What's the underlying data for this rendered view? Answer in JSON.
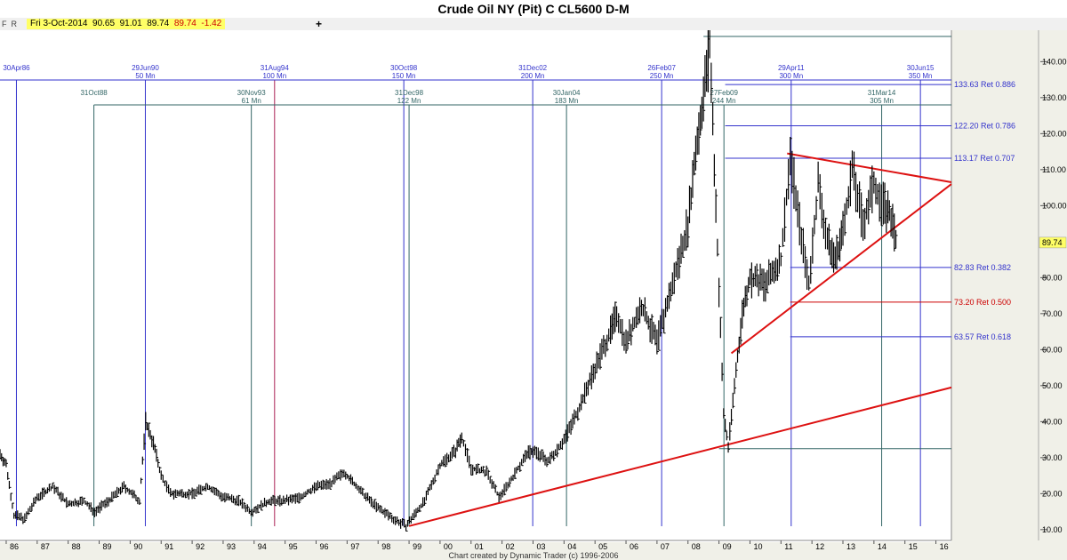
{
  "title": "Crude Oil NY (Pit) C CL5600 D-M",
  "toolbar": {
    "f_label": "F",
    "r_label": "R",
    "plus": "+"
  },
  "quote": {
    "date": "Fri 3-Oct-2014",
    "open": "90.65",
    "high": "91.01",
    "low": "89.74",
    "close": "89.74",
    "change": "-1.42"
  },
  "footer": "Chart created by Dynamic Trader  (c) 1996-2006",
  "colors": {
    "background": "#f0f0e8",
    "price": "#000000",
    "trendline": "#dd1111",
    "cycle_blue": "#3333cc",
    "cycle_green": "#336666",
    "fib_blue": "#3333cc",
    "fib_red": "#cc0000",
    "last_price_bg": "#ffff66"
  },
  "chart_data": {
    "type": "line",
    "title": "Crude Oil NY (Pit) C CL5600 D-M",
    "x_ticks": [
      "86",
      "87",
      "88",
      "89",
      "90",
      "91",
      "92",
      "93",
      "94",
      "95",
      "96",
      "97",
      "98",
      "99",
      "00",
      "01",
      "02",
      "03",
      "04",
      "05",
      "06",
      "07",
      "08",
      "09",
      "10",
      "11",
      "12",
      "13",
      "14",
      "15",
      "16"
    ],
    "y_ticks": [
      "10.00",
      "20.00",
      "30.00",
      "40.00",
      "50.00",
      "60.00",
      "70.00",
      "80.00",
      "90.00",
      "100.00",
      "110.00",
      "120.00",
      "130.00",
      "140.00"
    ],
    "ylim": [
      7,
      147
    ],
    "xlim": [
      1985.8,
      2016.5
    ],
    "last_price": "89.74",
    "series": [
      {
        "x": [
          1985.8,
          1986.0,
          1986.25,
          1986.6,
          1987.0,
          1987.5,
          1988.0,
          1988.5,
          1988.85,
          1989.3,
          1989.8,
          1990.3,
          1990.5,
          1990.75,
          1991.0,
          1991.3,
          1992.0,
          1992.5,
          1993.0,
          1993.5,
          1993.9,
          1994.5,
          1995.0,
          1995.5,
          1996.0,
          1996.5,
          1996.9,
          1997.5,
          1998.0,
          1998.5,
          1998.9,
          1999.5,
          2000.0,
          2000.5,
          2000.7,
          2001.0,
          2001.5,
          2001.9,
          2002.3,
          2002.8,
          2003.0,
          2003.5,
          2004.0,
          2004.5,
          2005.0,
          2005.5,
          2005.7,
          2006.0,
          2006.5,
          2007.0,
          2007.5,
          2008.0,
          2008.25,
          2008.5,
          2008.7,
          2008.9,
          2009.15,
          2009.3,
          2009.5,
          2009.75,
          2010.0,
          2010.5,
          2011.0,
          2011.3,
          2011.6,
          2011.9,
          2012.2,
          2012.5,
          2012.75,
          2013.0,
          2013.3,
          2013.65,
          2014.0,
          2014.3,
          2014.5,
          2014.76
        ],
        "y": [
          31,
          28,
          14,
          13,
          19,
          22,
          17,
          18,
          15,
          18,
          22,
          18,
          40,
          34,
          25,
          20,
          20,
          22,
          19,
          18,
          15,
          18,
          18,
          19,
          22,
          23,
          26,
          20,
          16,
          13,
          11,
          18,
          28,
          32,
          36,
          27,
          26,
          19,
          24,
          31,
          32,
          29,
          35,
          44,
          55,
          65,
          70,
          62,
          72,
          62,
          78,
          95,
          115,
          130,
          145,
          100,
          42,
          33,
          50,
          70,
          80,
          78,
          85,
          114,
          95,
          78,
          106,
          90,
          85,
          93,
          110,
          95,
          106,
          100,
          98,
          89.74
        ]
      }
    ],
    "cycle_lines": [
      {
        "date": "30Apr86",
        "x": 1986.33,
        "label": "30Apr86",
        "months": ""
      },
      {
        "date": "31Oct88",
        "x": 1988.83,
        "label": "31Oct88",
        "months": ""
      },
      {
        "date": "29Jun90",
        "x": 1990.49,
        "label": "29Jun90",
        "months": "50 Mn"
      },
      {
        "date": "30Nov93",
        "x": 1993.91,
        "label": "30Nov93",
        "months": "61 Mn"
      },
      {
        "date": "31Aug94",
        "x": 1994.66,
        "label": "31Aug94",
        "months": "100 Mn"
      },
      {
        "date": "30Oct98",
        "x": 1998.83,
        "label": "30Oct98",
        "months": "150 Mn"
      },
      {
        "date": "31Dec98",
        "x": 1999.0,
        "label": "31Dec98",
        "months": "122 Mn"
      },
      {
        "date": "31Dec02",
        "x": 2002.99,
        "label": "31Dec02",
        "months": "200 Mn"
      },
      {
        "date": "30Jan04",
        "x": 2004.08,
        "label": "30Jan04",
        "months": "183 Mn"
      },
      {
        "date": "26Feb07",
        "x": 2007.15,
        "label": "26Feb07",
        "months": "250 Mn"
      },
      {
        "date": "27Feb09",
        "x": 2009.16,
        "label": "27Feb09",
        "months": "244 Mn"
      },
      {
        "date": "29Apr11",
        "x": 2011.33,
        "label": "29Apr11",
        "months": "300 Mn"
      },
      {
        "date": "31Mar14",
        "x": 2014.25,
        "label": "31Mar14",
        "months": "305 Mn"
      },
      {
        "date": "30Jun15",
        "x": 2015.5,
        "label": "30Jun15",
        "months": "350 Mn"
      }
    ],
    "fib_levels": [
      {
        "price": 133.63,
        "label": "133.63 Ret 0.886",
        "color": "#3333cc"
      },
      {
        "price": 122.2,
        "label": "122.20 Ret 0.786",
        "color": "#3333cc"
      },
      {
        "price": 113.17,
        "label": "113.17 Ret 0.707",
        "color": "#3333cc"
      },
      {
        "price": 82.83,
        "label": "82.83 Ret 0.382",
        "color": "#3333cc"
      },
      {
        "price": 73.2,
        "label": "73.20 Ret 0.500",
        "color": "#cc0000"
      },
      {
        "price": 63.57,
        "label": "63.57 Ret 0.618",
        "color": "#3333cc"
      }
    ],
    "trendlines": [
      {
        "x1": 1999.0,
        "y1": 11,
        "x2": 2016.5,
        "y2": 49.5
      },
      {
        "x1": 2009.4,
        "y1": 59,
        "x2": 2016.5,
        "y2": 106
      },
      {
        "x1": 2011.2,
        "y1": 114.5,
        "x2": 2016.5,
        "y2": 106.5
      }
    ],
    "grid": false,
    "legend": "none"
  }
}
